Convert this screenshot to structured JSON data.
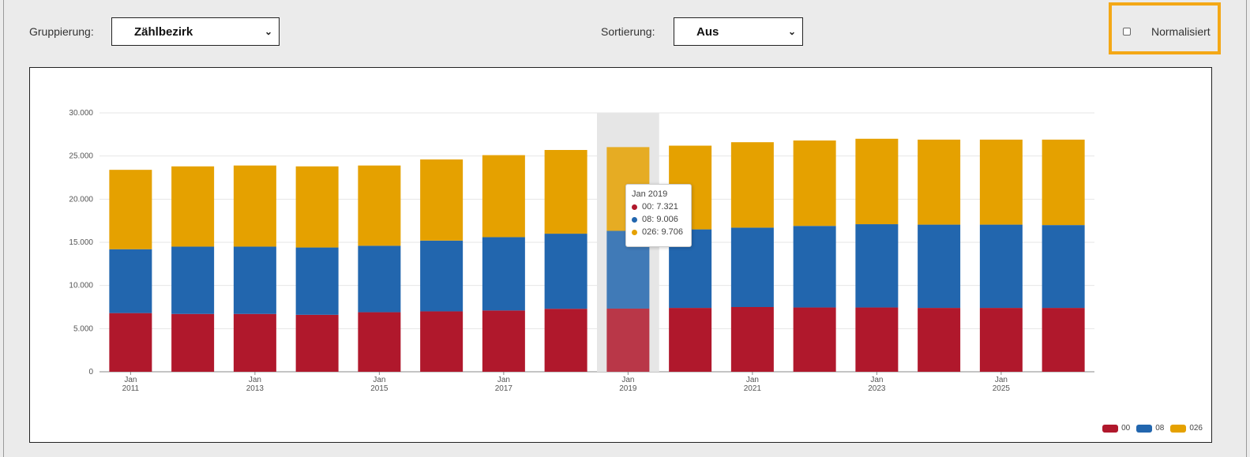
{
  "controls": {
    "grouping_label": "Gruppierung:",
    "grouping_value": "Zählbezirk",
    "sorting_label": "Sortierung:",
    "sorting_value": "Aus",
    "normalize_label": "Normalisiert",
    "normalize_checked": false,
    "highlight_color": "#f4a816"
  },
  "chart_data": {
    "type": "bar",
    "stacked": true,
    "categories": [
      "2011",
      "2012",
      "2013",
      "2014",
      "2015",
      "2016",
      "2017",
      "2018",
      "2019",
      "2020",
      "2021",
      "2022",
      "2023",
      "2024",
      "2025",
      "2026"
    ],
    "x_tick_labels": [
      {
        "category": "2011",
        "line1": "Jan",
        "line2": "2011"
      },
      {
        "category": "2013",
        "line1": "Jan",
        "line2": "2013"
      },
      {
        "category": "2015",
        "line1": "Jan",
        "line2": "2015"
      },
      {
        "category": "2017",
        "line1": "Jan",
        "line2": "2017"
      },
      {
        "category": "2019",
        "line1": "Jan",
        "line2": "2019"
      },
      {
        "category": "2021",
        "line1": "Jan",
        "line2": "2021"
      },
      {
        "category": "2023",
        "line1": "Jan",
        "line2": "2023"
      },
      {
        "category": "2025",
        "line1": "Jan",
        "line2": "2025"
      }
    ],
    "y_ticks": [
      0,
      5000,
      10000,
      15000,
      20000,
      25000,
      30000
    ],
    "y_tick_labels": [
      "0",
      "5.000",
      "10.000",
      "15.000",
      "20.000",
      "25.000",
      "30.000"
    ],
    "ylim": [
      0,
      30000
    ],
    "grid": true,
    "legend_position": "bottom-right",
    "series": [
      {
        "name": "00",
        "color": "#b0182c",
        "values": [
          6800,
          6700,
          6700,
          6600,
          6900,
          7000,
          7100,
          7300,
          7321,
          7400,
          7500,
          7450,
          7450,
          7400,
          7400,
          7400
        ]
      },
      {
        "name": "08",
        "color": "#2266ae",
        "values": [
          7400,
          7800,
          7800,
          7800,
          7700,
          8200,
          8500,
          8700,
          9006,
          9100,
          9200,
          9450,
          9650,
          9650,
          9650,
          9600
        ]
      },
      {
        "name": "026",
        "color": "#e5a100",
        "values": [
          9200,
          9300,
          9400,
          9400,
          9300,
          9400,
          9500,
          9700,
          9706,
          9700,
          9900,
          9900,
          9900,
          9850,
          9850,
          9900
        ]
      }
    ],
    "hovered_category": "2019",
    "tooltip": {
      "title": "Jan 2019",
      "rows": [
        {
          "series": "00",
          "text": "00: 7.321",
          "color": "#b0182c"
        },
        {
          "series": "08",
          "text": "08: 9.006",
          "color": "#2266ae"
        },
        {
          "series": "026",
          "text": "026: 9.706",
          "color": "#e5a100"
        }
      ]
    }
  }
}
